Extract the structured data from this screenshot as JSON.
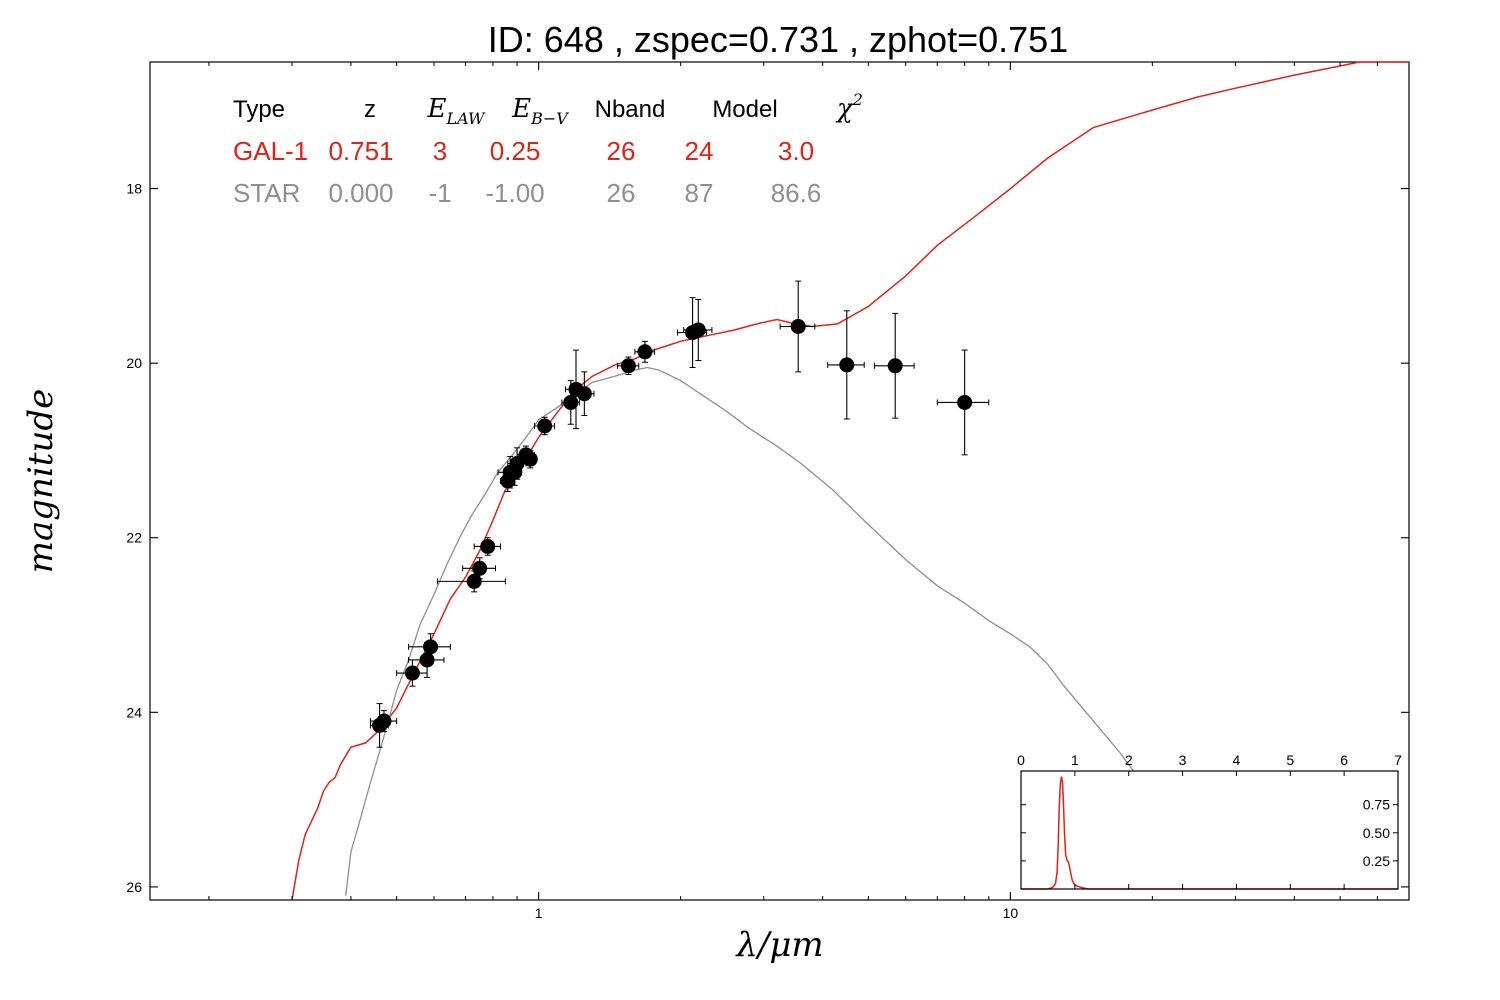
{
  "title": "ID:  648   , zspec=0.731 , zphot=0.751",
  "xlabel": "λ/μm",
  "ylabel": "magnitude",
  "colors": {
    "gal": "#e32119",
    "star": "#8f8f8f",
    "points": "#000000"
  },
  "legend_table": {
    "headers": [
      "Type",
      "z",
      "E",
      "E",
      "Nband",
      "Model",
      "χ"
    ],
    "header_subscripts": [
      "",
      "",
      "LAW",
      "B−V",
      "",
      "",
      ""
    ],
    "header_superscripts": [
      "",
      "",
      "",
      "",
      "",
      "",
      "2"
    ],
    "rows": [
      {
        "name": "gal",
        "cells": [
          "GAL-1",
          "0.751",
          "3",
          "0.25",
          "26",
          "24",
          "3.0"
        ]
      },
      {
        "name": "star",
        "cells": [
          "STAR",
          "0.000",
          "-1",
          "-1.00",
          "26",
          "87",
          "86.6"
        ]
      }
    ]
  },
  "chart_data": [
    {
      "type": "scatter",
      "x_scale": "log",
      "y_inverted": true,
      "xlim": [
        0.15,
        70
      ],
      "ylim": [
        26.15,
        16.55
      ],
      "xticks": [
        {
          "v": 1,
          "label": "1"
        },
        {
          "v": 10,
          "label": "10"
        }
      ],
      "yticks": [
        {
          "v": 18,
          "label": "18"
        },
        {
          "v": 20,
          "label": "20"
        },
        {
          "v": 22,
          "label": "22"
        },
        {
          "v": 24,
          "label": "24"
        },
        {
          "v": 26,
          "label": "26"
        }
      ],
      "grid": false,
      "series": [
        {
          "name": "GAL-1",
          "kind": "line",
          "x": [
            0.3,
            0.31,
            0.32,
            0.34,
            0.35,
            0.36,
            0.37,
            0.38,
            0.4,
            0.43,
            0.46,
            0.5,
            0.55,
            0.6,
            0.65,
            0.7,
            0.75,
            0.8,
            0.85,
            0.9,
            0.95,
            1.0,
            1.1,
            1.2,
            1.3,
            1.45,
            1.6,
            1.75,
            2.0,
            2.3,
            2.6,
            2.9,
            3.2,
            3.5,
            3.8,
            4.3,
            5.0,
            6.0,
            7.0,
            8.5,
            10.0,
            12.0,
            15.0,
            20.0,
            25.0,
            30.0,
            40.0,
            55.0,
            70.0
          ],
          "y": [
            26.2,
            25.7,
            25.4,
            25.1,
            24.9,
            24.8,
            24.75,
            24.6,
            24.4,
            24.35,
            24.2,
            23.95,
            23.5,
            23.1,
            22.7,
            22.45,
            22.15,
            21.8,
            21.45,
            21.25,
            21.05,
            20.85,
            20.55,
            20.3,
            20.15,
            20.02,
            19.95,
            19.85,
            19.75,
            19.68,
            19.62,
            19.55,
            19.5,
            19.55,
            19.58,
            19.55,
            19.35,
            19.0,
            18.65,
            18.3,
            18.0,
            17.65,
            17.3,
            17.1,
            16.95,
            16.85,
            16.7,
            16.55,
            16.45
          ]
        },
        {
          "name": "STAR",
          "kind": "line",
          "x": [
            0.39,
            0.4,
            0.42,
            0.44,
            0.46,
            0.48,
            0.5,
            0.53,
            0.56,
            0.6,
            0.64,
            0.68,
            0.72,
            0.77,
            0.82,
            0.88,
            0.94,
            1.0,
            1.1,
            1.2,
            1.3,
            1.45,
            1.6,
            1.7,
            1.8,
            2.0,
            2.2,
            2.5,
            2.8,
            3.2,
            3.6,
            4.2,
            5.0,
            6.0,
            7.0,
            8.0,
            9.0,
            10.0,
            11.0,
            12.0,
            13.0,
            15.0,
            17.0,
            19.0
          ],
          "y": [
            26.1,
            25.6,
            25.2,
            24.8,
            24.45,
            24.1,
            23.75,
            23.4,
            23.0,
            22.65,
            22.3,
            22.0,
            21.75,
            21.5,
            21.25,
            21.05,
            20.85,
            20.65,
            20.5,
            20.35,
            20.22,
            20.15,
            20.08,
            20.05,
            20.08,
            20.2,
            20.35,
            20.55,
            20.75,
            20.95,
            21.15,
            21.45,
            21.85,
            22.25,
            22.55,
            22.75,
            22.95,
            23.1,
            23.25,
            23.45,
            23.7,
            24.1,
            24.45,
            24.8
          ]
        },
        {
          "name": "photometry",
          "kind": "errorbar",
          "points": [
            {
              "x": 0.46,
              "y": 24.15,
              "xerr": 0.02,
              "yerr": 0.25
            },
            {
              "x": 0.47,
              "y": 24.1,
              "xerr": 0.03,
              "yerr": 0.12
            },
            {
              "x": 0.54,
              "y": 23.55,
              "xerr": 0.04,
              "yerr": 0.15
            },
            {
              "x": 0.58,
              "y": 23.4,
              "xerr": 0.05,
              "yerr": 0.2
            },
            {
              "x": 0.59,
              "y": 23.25,
              "xerr": 0.06,
              "yerr": 0.15
            },
            {
              "x": 0.73,
              "y": 22.5,
              "xerr": 0.12,
              "yerr": 0.12
            },
            {
              "x": 0.75,
              "y": 22.35,
              "xerr": 0.06,
              "yerr": 0.12
            },
            {
              "x": 0.78,
              "y": 22.1,
              "xerr": 0.05,
              "yerr": 0.1
            },
            {
              "x": 0.86,
              "y": 21.35,
              "xerr": 0.03,
              "yerr": 0.12
            },
            {
              "x": 0.87,
              "y": 21.25,
              "xerr": 0.05,
              "yerr": 0.18
            },
            {
              "x": 0.89,
              "y": 21.25,
              "xerr": 0.03,
              "yerr": 0.15
            },
            {
              "x": 0.9,
              "y": 21.15,
              "xerr": 0.04,
              "yerr": 0.18
            },
            {
              "x": 0.94,
              "y": 21.05,
              "xerr": 0.04,
              "yerr": 0.1
            },
            {
              "x": 0.96,
              "y": 21.1,
              "xerr": 0.03,
              "yerr": 0.1
            },
            {
              "x": 1.03,
              "y": 20.72,
              "xerr": 0.05,
              "yerr": 0.1
            },
            {
              "x": 1.17,
              "y": 20.45,
              "xerr": 0.05,
              "yerr": 0.25
            },
            {
              "x": 1.2,
              "y": 20.3,
              "xerr": 0.06,
              "yerr": 0.45
            },
            {
              "x": 1.25,
              "y": 20.35,
              "xerr": 0.06,
              "yerr": 0.25
            },
            {
              "x": 1.55,
              "y": 20.03,
              "xerr": 0.08,
              "yerr": 0.1
            },
            {
              "x": 1.68,
              "y": 19.87,
              "xerr": 0.08,
              "yerr": 0.12
            },
            {
              "x": 2.12,
              "y": 19.65,
              "xerr": 0.15,
              "yerr": 0.4
            },
            {
              "x": 2.18,
              "y": 19.62,
              "xerr": 0.15,
              "yerr": 0.35
            },
            {
              "x": 3.55,
              "y": 19.58,
              "xerr": 0.3,
              "yerr": 0.52
            },
            {
              "x": 4.5,
              "y": 20.02,
              "xerr": 0.4,
              "yerr": 0.62
            },
            {
              "x": 5.7,
              "y": 20.03,
              "xerr": 0.55,
              "yerr": 0.6
            },
            {
              "x": 8.0,
              "y": 20.45,
              "xerr": 1.0,
              "yerr": 0.6
            }
          ]
        }
      ]
    },
    {
      "type": "line",
      "name": "inset-pdz",
      "xlim": [
        0,
        7
      ],
      "ylim": [
        0,
        1.05
      ],
      "xticks": [
        {
          "v": 0,
          "label": "0"
        },
        {
          "v": 1,
          "label": "1"
        },
        {
          "v": 2,
          "label": "2"
        },
        {
          "v": 3,
          "label": "3"
        },
        {
          "v": 4,
          "label": "4"
        },
        {
          "v": 5,
          "label": "5"
        },
        {
          "v": 6,
          "label": "6"
        },
        {
          "v": 7,
          "label": "7"
        }
      ],
      "yticks": [
        {
          "v": 0.25,
          "label": "0.25"
        },
        {
          "v": 0.5,
          "label": "0.50"
        },
        {
          "v": 0.75,
          "label": "0.75"
        }
      ],
      "series": [
        {
          "name": "pdz",
          "x": [
            0,
            0.5,
            0.56,
            0.6,
            0.64,
            0.67,
            0.69,
            0.71,
            0.73,
            0.75,
            0.77,
            0.79,
            0.81,
            0.83,
            0.86,
            0.88,
            0.9,
            0.92,
            0.95,
            0.98,
            1.02,
            1.08,
            1.15,
            1.25,
            7.0
          ],
          "y": [
            0,
            0,
            0.01,
            0.02,
            0.05,
            0.15,
            0.4,
            0.72,
            0.93,
            1.0,
            0.95,
            0.75,
            0.48,
            0.3,
            0.25,
            0.24,
            0.2,
            0.15,
            0.08,
            0.05,
            0.03,
            0.02,
            0.01,
            0,
            0
          ]
        }
      ]
    }
  ]
}
